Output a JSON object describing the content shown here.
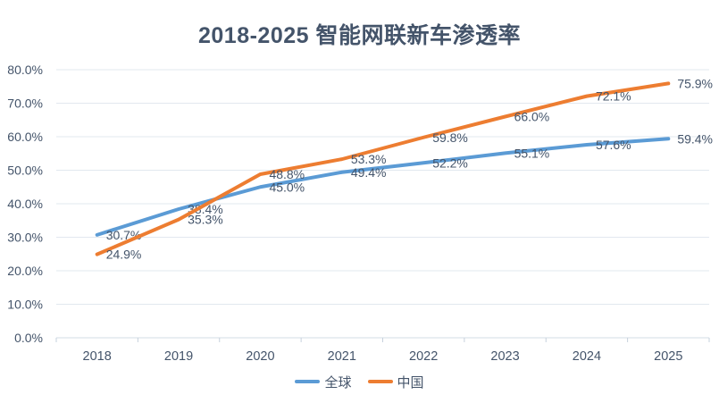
{
  "chart_data": {
    "type": "line",
    "title": "2018-2025 智能网联新车渗透率",
    "categories": [
      "2018",
      "2019",
      "2020",
      "2021",
      "2022",
      "2023",
      "2024",
      "2025"
    ],
    "series": [
      {
        "name": "全球",
        "color": "#5B9BD5",
        "values": [
          30.7,
          38.4,
          45.0,
          49.4,
          52.2,
          55.1,
          57.6,
          59.4
        ]
      },
      {
        "name": "中国",
        "color": "#ED7D31",
        "values": [
          24.9,
          35.3,
          48.8,
          53.3,
          59.8,
          66.0,
          72.1,
          75.9
        ]
      }
    ],
    "xlabel": "",
    "ylabel": "",
    "ylim": [
      0,
      80
    ],
    "y_tick_step": 10,
    "y_tick_labels": [
      "0.0%",
      "10.0%",
      "20.0%",
      "30.0%",
      "40.0%",
      "50.0%",
      "60.0%",
      "70.0%",
      "80.0%"
    ],
    "grid": true,
    "legend_position": "bottom",
    "data_labels_position": "right",
    "data_label_suffix": "%",
    "text_color": "#44546A",
    "grid_color": "#E2E8EF",
    "axis_color": "#D3DCE5",
    "tick_color": "#C6D0DC",
    "line_width": 4
  }
}
